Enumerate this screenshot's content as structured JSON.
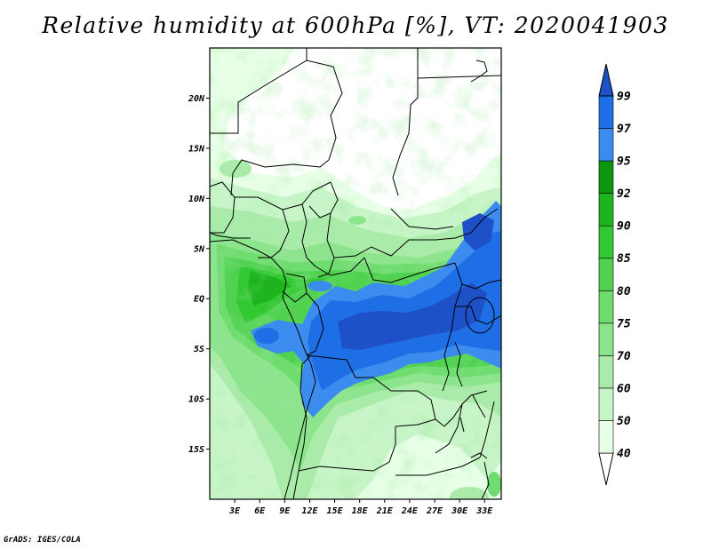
{
  "title": "Relative humidity at 600hPa [%], VT: 2020041903",
  "credit": "GrADS: IGES/COLA",
  "map": {
    "lon_range": [
      0,
      35
    ],
    "lat_range": [
      -20,
      25
    ],
    "lat_ticks": [
      {
        "value": 20,
        "label": "20N"
      },
      {
        "value": 15,
        "label": "15N"
      },
      {
        "value": 10,
        "label": "10N"
      },
      {
        "value": 5,
        "label": "5N"
      },
      {
        "value": 0,
        "label": "EQ"
      },
      {
        "value": -5,
        "label": "5S"
      },
      {
        "value": -10,
        "label": "10S"
      },
      {
        "value": -15,
        "label": "15S"
      }
    ],
    "lon_ticks": [
      {
        "value": 3,
        "label": "3E"
      },
      {
        "value": 6,
        "label": "6E"
      },
      {
        "value": 9,
        "label": "9E"
      },
      {
        "value": 12,
        "label": "12E"
      },
      {
        "value": 15,
        "label": "15E"
      },
      {
        "value": 18,
        "label": "18E"
      },
      {
        "value": 21,
        "label": "21E"
      },
      {
        "value": 24,
        "label": "24E"
      },
      {
        "value": 27,
        "label": "27E"
      },
      {
        "value": 30,
        "label": "30E"
      },
      {
        "value": 33,
        "label": "33E"
      }
    ]
  },
  "colorbar": {
    "levels": [
      "40",
      "50",
      "60",
      "70",
      "75",
      "80",
      "85",
      "90",
      "92",
      "95",
      "97",
      "99"
    ],
    "colors": [
      "#e6ffe6",
      "#c8f5c8",
      "#aaebaa",
      "#8ce48c",
      "#6edc6e",
      "#50d250",
      "#32c832",
      "#1eb41e",
      "#0f960f",
      "#3c8cf0",
      "#1e6ee6",
      "#1e50c8"
    ],
    "below_color": "#ffffff"
  }
}
